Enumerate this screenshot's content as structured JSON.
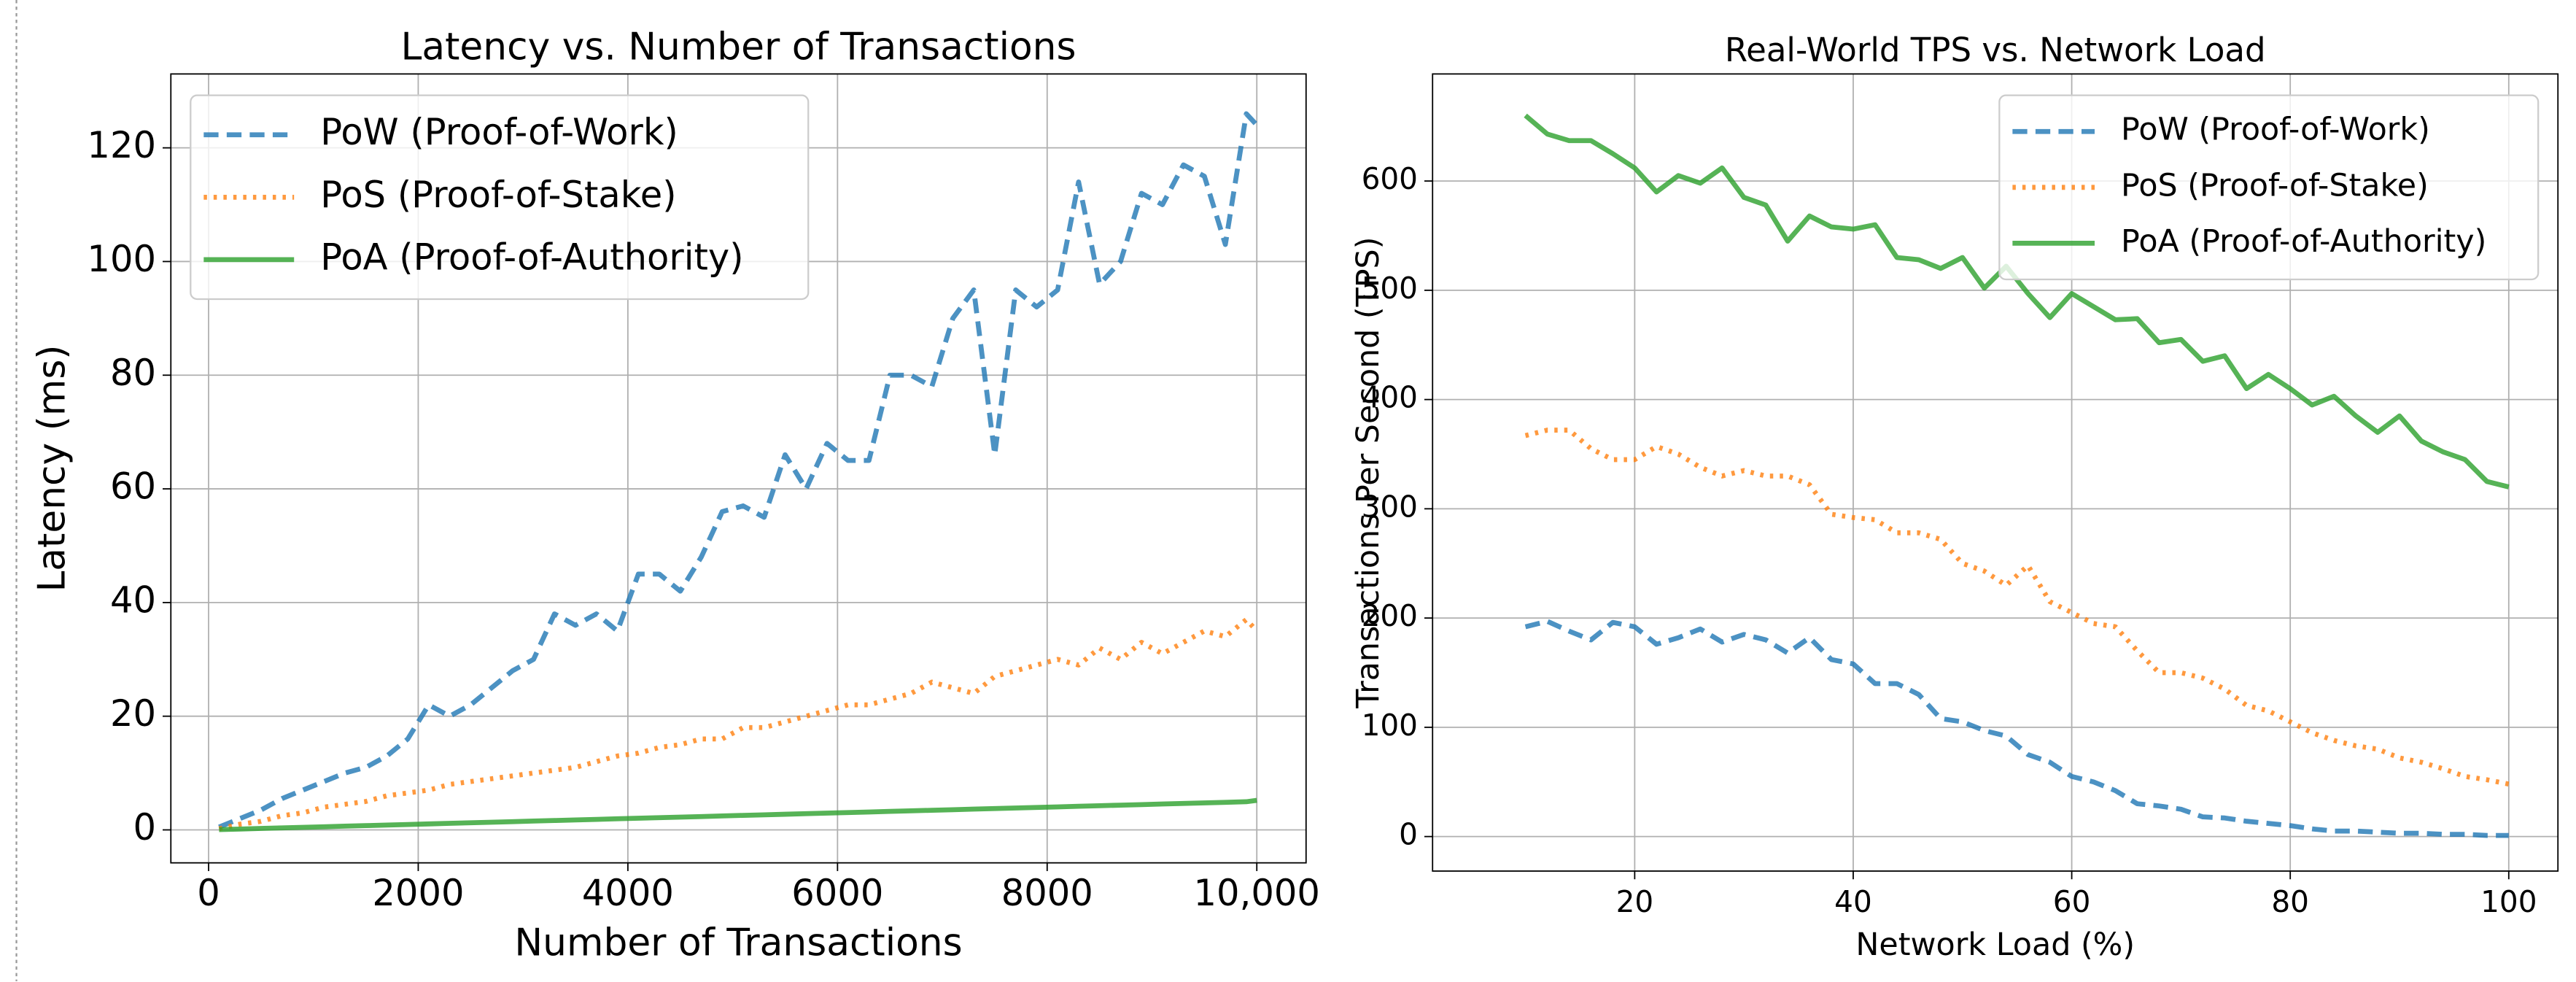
{
  "chart_data": [
    {
      "type": "line",
      "title": "Latency vs. Number of Transactions",
      "x_label": "Number of Transactions",
      "y_label": "Latency (ms)",
      "x": [
        100,
        300,
        500,
        700,
        900,
        1100,
        1300,
        1500,
        1700,
        1900,
        2100,
        2300,
        2500,
        2700,
        2900,
        3100,
        3300,
        3500,
        3700,
        3900,
        4100,
        4300,
        4500,
        4700,
        4900,
        5100,
        5300,
        5500,
        5700,
        5900,
        6100,
        6300,
        6500,
        6700,
        6900,
        7100,
        7300,
        7500,
        7700,
        7900,
        8100,
        8300,
        8500,
        8700,
        8900,
        9100,
        9300,
        9500,
        9700,
        9900,
        10000
      ],
      "series": [
        {
          "name": "PoW (Proof-of-Work)",
          "color": "#1f77b4",
          "linestyle": "dashed",
          "values": [
            0.5,
            2,
            3.5,
            5.5,
            7,
            8.5,
            10,
            11,
            13,
            16,
            22,
            20,
            22,
            25,
            28,
            30,
            38,
            36,
            38,
            35,
            45,
            45,
            42,
            48,
            56,
            57,
            55,
            66,
            60,
            68,
            65,
            65,
            80,
            80,
            78,
            90,
            95,
            66,
            95,
            92,
            95,
            114,
            96,
            100,
            112,
            110,
            117,
            115,
            103,
            126,
            124
          ]
        },
        {
          "name": "PoS (Proof-of-Stake)",
          "color": "#ff7f0e",
          "linestyle": "dotted",
          "values": [
            0.2,
            1,
            1.5,
            2.5,
            3,
            4,
            4.5,
            5,
            6,
            6.5,
            7,
            8,
            8.5,
            9,
            9.5,
            10,
            10.5,
            11,
            12,
            13,
            13.5,
            14.5,
            15,
            16,
            16,
            18,
            18,
            19,
            20,
            21,
            22,
            22,
            23,
            24,
            26,
            25,
            24,
            27,
            28,
            29,
            30,
            29,
            32,
            30,
            33,
            31,
            33,
            35,
            34,
            37,
            35
          ]
        },
        {
          "name": "PoA (Proof-of-Authority)",
          "color": "#2ca02c",
          "linestyle": "solid",
          "values": [
            0.05,
            0.15,
            0.25,
            0.35,
            0.45,
            0.55,
            0.65,
            0.75,
            0.85,
            0.95,
            1.05,
            1.15,
            1.25,
            1.35,
            1.45,
            1.55,
            1.65,
            1.75,
            1.85,
            1.95,
            2.05,
            2.15,
            2.25,
            2.35,
            2.45,
            2.55,
            2.65,
            2.75,
            2.85,
            2.95,
            3.05,
            3.15,
            3.25,
            3.35,
            3.45,
            3.55,
            3.65,
            3.75,
            3.85,
            3.95,
            4.05,
            4.15,
            4.25,
            4.35,
            4.45,
            4.55,
            4.65,
            4.75,
            4.85,
            4.95,
            5.2
          ]
        }
      ],
      "xlim": [
        -360,
        10470
      ],
      "ylim": [
        -5.8,
        133
      ],
      "xticks": [
        0,
        2000,
        4000,
        6000,
        8000,
        {
          "value": 10000,
          "label": "10,000"
        }
      ],
      "yticks": [
        0,
        20,
        40,
        60,
        80,
        100,
        120
      ],
      "grid": true,
      "legend": "upper left"
    },
    {
      "type": "line",
      "title": "Real-World TPS vs. Network Load",
      "x_label": "Network Load (%)",
      "y_label": "Transactions Per Second (TPS)",
      "x": [
        10,
        12,
        14,
        16,
        18,
        20,
        22,
        24,
        26,
        28,
        30,
        32,
        34,
        36,
        38,
        40,
        42,
        44,
        46,
        48,
        50,
        52,
        54,
        56,
        58,
        60,
        62,
        64,
        66,
        68,
        70,
        72,
        74,
        76,
        78,
        80,
        82,
        84,
        86,
        88,
        90,
        92,
        94,
        96,
        98,
        100
      ],
      "series": [
        {
          "name": "PoW (Proof-of-Work)",
          "color": "#1f77b4",
          "linestyle": "dashed",
          "values": [
            192,
            197,
            188,
            180,
            196,
            192,
            176,
            182,
            190,
            178,
            185,
            180,
            168,
            182,
            162,
            158,
            140,
            140,
            130,
            108,
            105,
            97,
            92,
            75,
            68,
            55,
            50,
            42,
            30,
            28,
            25,
            18,
            17,
            14,
            12,
            10,
            7,
            5,
            5,
            4,
            3,
            3,
            2,
            2,
            1,
            1
          ]
        },
        {
          "name": "PoS (Proof-of-Stake)",
          "color": "#ff7f0e",
          "linestyle": "dotted",
          "values": [
            367,
            372,
            372,
            355,
            345,
            345,
            357,
            350,
            338,
            330,
            335,
            330,
            330,
            322,
            295,
            292,
            290,
            278,
            278,
            272,
            250,
            243,
            230,
            248,
            215,
            205,
            195,
            192,
            170,
            150,
            150,
            145,
            135,
            120,
            115,
            105,
            95,
            88,
            83,
            80,
            72,
            68,
            62,
            55,
            52,
            48
          ]
        },
        {
          "name": "PoA (Proof-of-Authority)",
          "color": "#2ca02c",
          "linestyle": "solid",
          "values": [
            660,
            643,
            637,
            637,
            625,
            612,
            590,
            605,
            598,
            612,
            585,
            578,
            545,
            568,
            558,
            556,
            560,
            530,
            528,
            520,
            530,
            502,
            522,
            497,
            475,
            497,
            485,
            473,
            474,
            452,
            455,
            435,
            440,
            410,
            423,
            410,
            395,
            403,
            385,
            370,
            385,
            362,
            352,
            345,
            325,
            320
          ]
        }
      ],
      "xlim": [
        1.5,
        104.5
      ],
      "ylim": [
        -31.6,
        698
      ],
      "xticks": [
        20,
        40,
        60,
        80,
        100
      ],
      "yticks": [
        0,
        100,
        200,
        300,
        400,
        500,
        600
      ],
      "grid": true,
      "legend": "upper right"
    }
  ]
}
